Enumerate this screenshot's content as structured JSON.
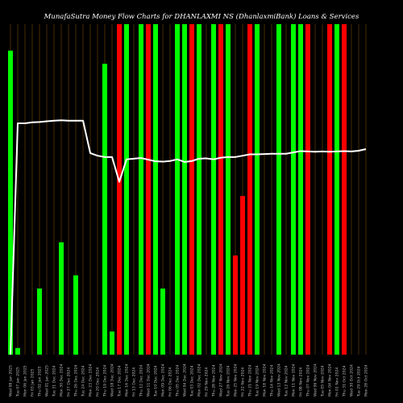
{
  "chart_data": {
    "type": "bar",
    "title": "MunafaSutra  Money Flow  Charts for DHANLAXMI NS  (DhanlaxmiBank)  Loans & Services",
    "categories": [
      "Wed 08 Jan 2025",
      "Tue 07 Jan 2025",
      "Mon 06 Jan 2025",
      "Fri 03 Jan 2025",
      "Thu 02 Jan 2025",
      "Wed 01 Jan 2025",
      "Tue 31 Dec 2024",
      "Mon 30 Dec 2024",
      "Fri 27 Dec 2024",
      "Thu 26 Dec 2024",
      "Tue 24 Dec 2024",
      "Mon 23 Dec 2024",
      "Fri 20 Dec 2024",
      "Thu 19 Dec 2024",
      "Wed 18 Dec 2024",
      "Tue 17 Dec 2024",
      "Mon 16 Dec 2024",
      "Fri 13 Dec 2024",
      "Thu 12 Dec 2024",
      "Wed 11 Dec 2024",
      "Tue 10 Dec 2024",
      "Mon 09 Dec 2024",
      "Fri 06 Dec 2024",
      "Thu 05 Dec 2024",
      "Wed 04 Dec 2024",
      "Tue 03 Dec 2024",
      "Mon 02 Dec 2024",
      "Fri 29 Nov 2024",
      "Thu 28 Nov 2024",
      "Wed 27 Nov 2024",
      "Tue 26 Nov 2024",
      "Mon 25 Nov 2024",
      "Fri 22 Nov 2024",
      "Thu 21 Nov 2024",
      "Tue 19 Nov 2024",
      "Mon 18 Nov 2024",
      "Thu 14 Nov 2024",
      "Wed 13 Nov 2024",
      "Tue 12 Nov 2024",
      "Mon 11 Nov 2024",
      "Fri 08 Nov 2024",
      "Thu 07 Nov 2024",
      "Wed 06 Nov 2024",
      "Tue 05 Nov 2024",
      "Mon 04 Nov 2024",
      "Fri 01 Nov 2024",
      "Thu 31 Oct 2024",
      "Wed 30 Oct 2024",
      "Tue 29 Oct 2024",
      "Mon 28 Oct 2024"
    ],
    "series": [
      {
        "role": "volume",
        "values": [
          92,
          2,
          0,
          0,
          20,
          0,
          0,
          34,
          0,
          24,
          0,
          0,
          0,
          88,
          7,
          100,
          100,
          0,
          100,
          100,
          100,
          20,
          0,
          100,
          100,
          100,
          100,
          0,
          100,
          100,
          100,
          30,
          48,
          100,
          100,
          0,
          0,
          100,
          0,
          100,
          100,
          100,
          0,
          0,
          100,
          100,
          100,
          0,
          0,
          0
        ],
        "colors": [
          "green",
          "green",
          "green",
          "green",
          "green",
          "red",
          "green",
          "green",
          "red",
          "green",
          "green",
          "green",
          "green",
          "green",
          "green",
          "red",
          "green",
          "green",
          "green",
          "red",
          "green",
          "green",
          "red",
          "green",
          "green",
          "red",
          "green",
          "red",
          "green",
          "red",
          "green",
          "red",
          "red",
          "red",
          "green",
          "red",
          "red",
          "green",
          "green",
          "green",
          "green",
          "red",
          "green",
          "red",
          "red",
          "green",
          "red",
          "green",
          "green",
          "red"
        ]
      },
      {
        "role": "money_flow_line",
        "values": [
          0,
          70,
          70,
          70.3,
          70.4,
          70.6,
          70.8,
          70.9,
          70.8,
          70.8,
          70.8,
          61,
          60.2,
          59.8,
          59.8,
          52.3,
          59.1,
          59.3,
          59.5,
          59,
          58.5,
          58.4,
          58.6,
          59.1,
          58.3,
          58.6,
          59.3,
          59.4,
          59.1,
          59.6,
          59.8,
          59.8,
          60.2,
          60.6,
          60.6,
          60.7,
          60.8,
          60.8,
          60.8,
          61.2,
          61.6,
          61.5,
          61.4,
          61.5,
          61.4,
          61.5,
          61.6,
          61.5,
          61.7,
          62.2
        ]
      }
    ],
    "ylim": [
      0,
      100
    ],
    "colors": {
      "green": "#00ff00",
      "red": "#ff0000",
      "line": "#ffffff",
      "grid": "#7a4a00",
      "background": "#000000"
    }
  }
}
